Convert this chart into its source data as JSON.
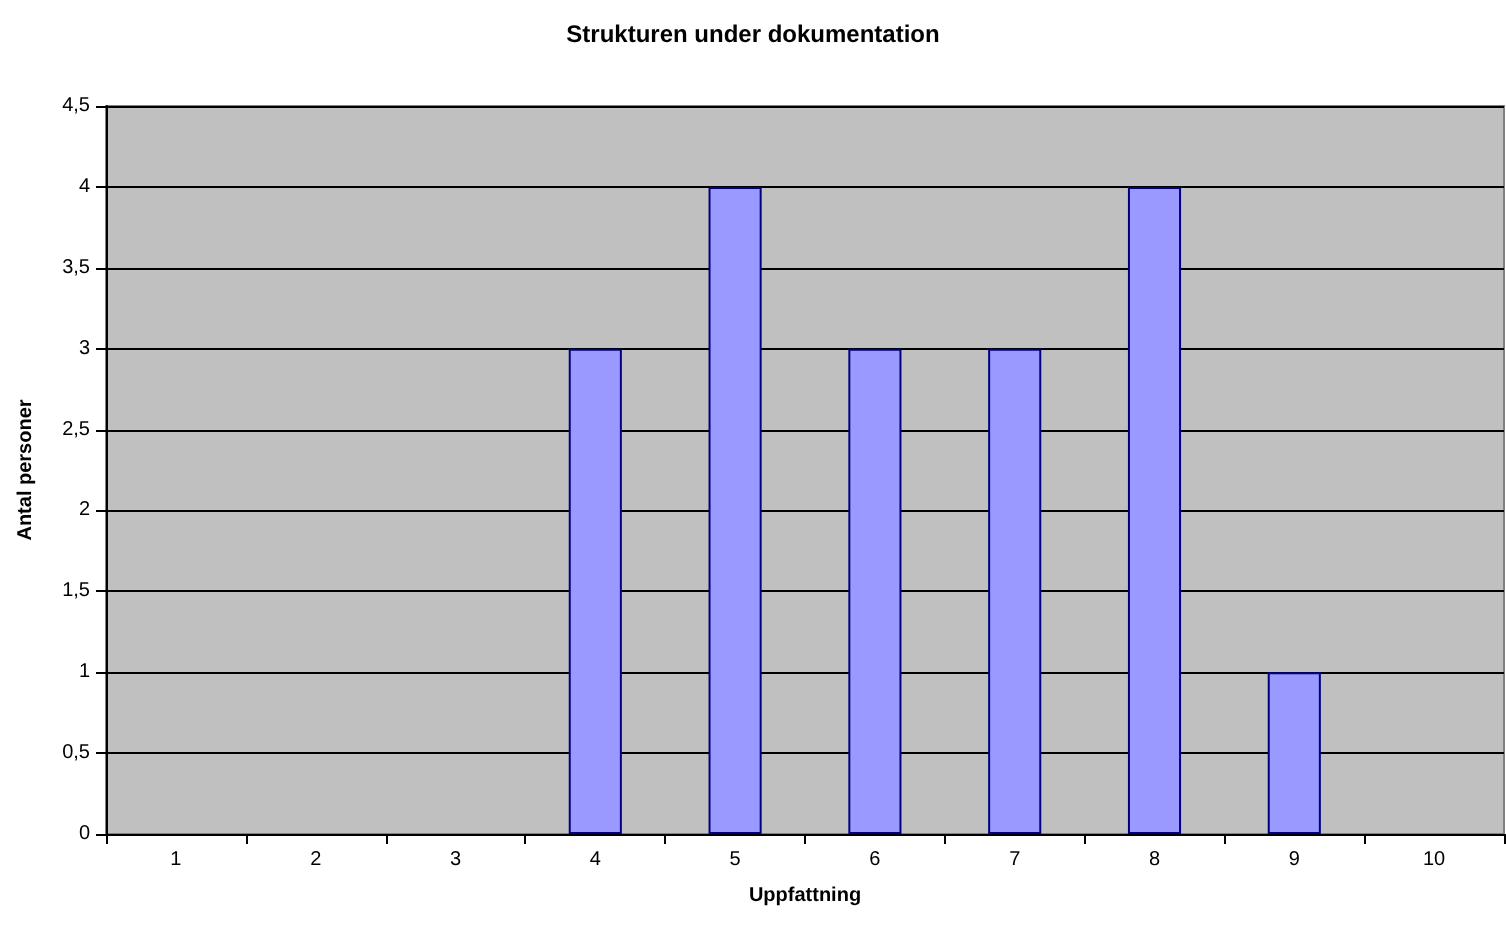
{
  "chart_data": {
    "type": "bar",
    "title": "Strukturen under dokumentation",
    "xlabel": "Uppfattning",
    "ylabel": "Antal personer",
    "categories": [
      "1",
      "2",
      "3",
      "4",
      "5",
      "6",
      "7",
      "8",
      "9",
      "10"
    ],
    "values": [
      0,
      0,
      0,
      3,
      4,
      3,
      3,
      4,
      1,
      0
    ],
    "color": "#9999ff",
    "ylim": [
      0,
      4.5
    ],
    "yticks": [
      0,
      {
        "value": 0.5,
        "label": "0,5"
      },
      1,
      {
        "value": 1.5,
        "label": "1,5"
      },
      2,
      {
        "value": 2.5,
        "label": "2,5"
      },
      3,
      {
        "value": 3.5,
        "label": "3,5"
      },
      4,
      {
        "value": 4.5,
        "label": "4,5"
      }
    ],
    "grid": "y"
  }
}
